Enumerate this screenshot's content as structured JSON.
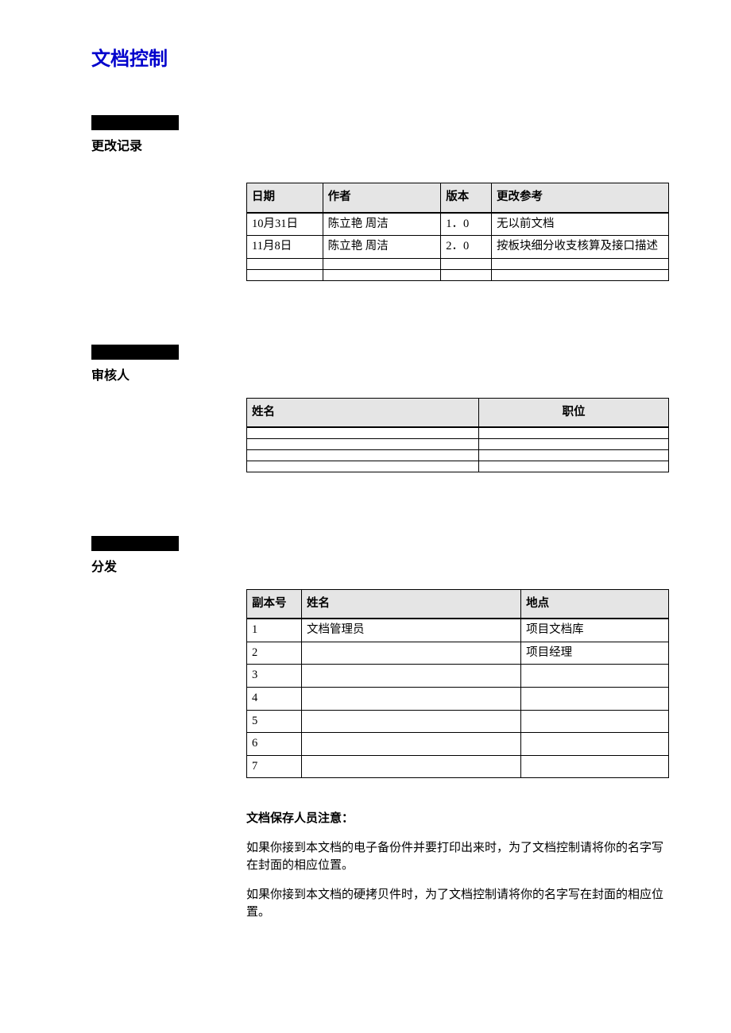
{
  "page": {
    "title": "文档控制",
    "title_color": "#0000cc",
    "bg": "#ffffff"
  },
  "sections": {
    "changes": {
      "label": "更改记录",
      "table": {
        "columns": [
          "日期",
          "作者",
          "版本",
          "更改参考"
        ],
        "col_widths": [
          "18%",
          "28%",
          "12%",
          "42%"
        ],
        "rows": [
          [
            "10月31日",
            "陈立艳  周洁",
            "1．0",
            "无以前文档"
          ],
          [
            "11月8日",
            "陈立艳  周洁",
            "2．0",
            "按板块细分收支核算及接口描述"
          ],
          [
            "",
            "",
            "",
            ""
          ],
          [
            "",
            "",
            "",
            ""
          ]
        ]
      }
    },
    "reviewers": {
      "label": "审核人",
      "table": {
        "columns": [
          "姓名",
          "职位"
        ],
        "col_widths": [
          "55%",
          "45%"
        ],
        "rows": [
          [
            "",
            ""
          ],
          [
            "",
            ""
          ],
          [
            "",
            ""
          ],
          [
            "",
            ""
          ]
        ]
      }
    },
    "distribution": {
      "label": "分发",
      "table": {
        "columns": [
          "副本号",
          "姓名",
          "地点"
        ],
        "col_widths": [
          "13%",
          "52%",
          "35%"
        ],
        "rows": [
          [
            "1",
            "文档管理员",
            "项目文档库"
          ],
          [
            "2",
            "",
            "项目经理"
          ],
          [
            "3",
            "",
            ""
          ],
          [
            "4",
            "",
            ""
          ],
          [
            "5",
            "",
            ""
          ],
          [
            "6",
            "",
            ""
          ],
          [
            "7",
            "",
            ""
          ]
        ]
      }
    }
  },
  "notice": {
    "title": "文档保存人员注意：",
    "p1": "如果你接到本文档的电子备份件并要打印出来时，为了文档控制请将你的名字写在封面的相应位置。",
    "p2": "如果你接到本文档的硬拷贝件时，为了文档控制请将你的名字写在封面的相应位置。"
  },
  "style": {
    "header_bg": "#e5e5e5",
    "border_color": "#000000",
    "black_bar": "#000000"
  }
}
